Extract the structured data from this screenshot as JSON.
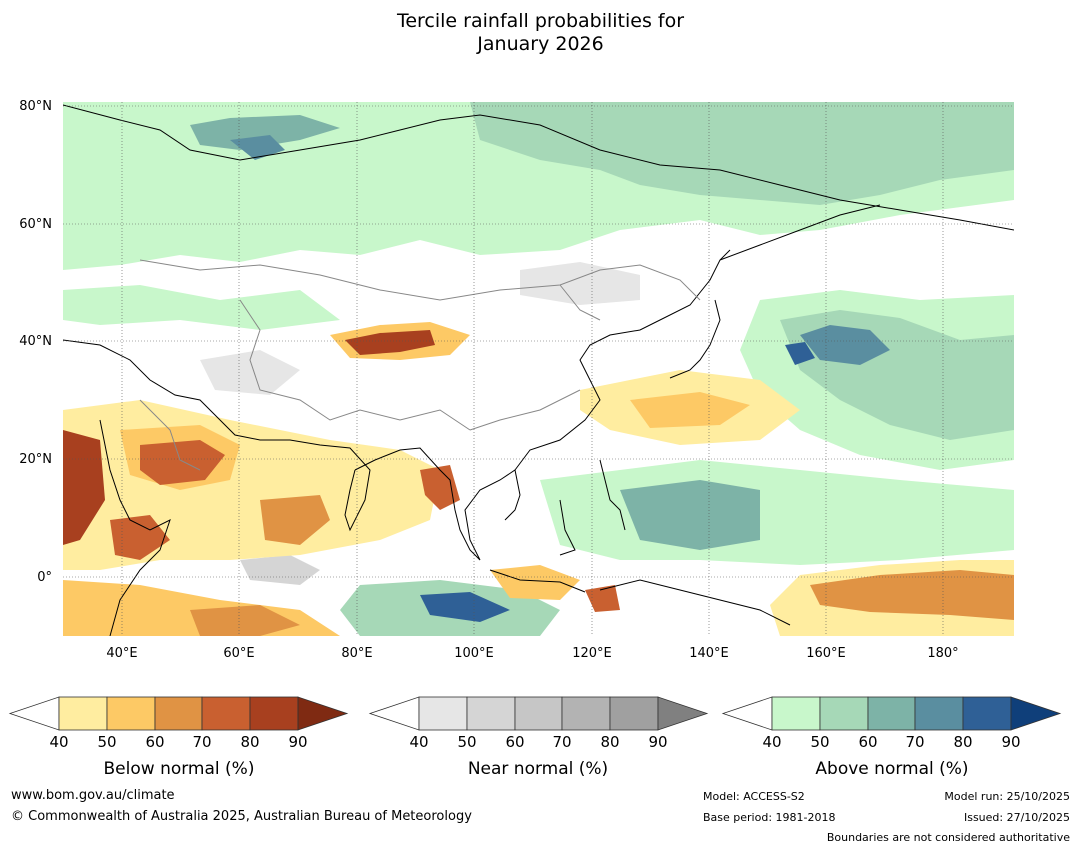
{
  "title": {
    "line1": "Tercile rainfall probabilities for",
    "line2": "January 2026"
  },
  "map": {
    "lat_labels": [
      "80°N",
      "60°N",
      "40°N",
      "20°N",
      "0°"
    ],
    "lon_labels": [
      "40°E",
      "60°E",
      "80°E",
      "100°E",
      "120°E",
      "140°E",
      "160°E",
      "180°"
    ]
  },
  "colorbars": [
    {
      "name": "below",
      "label": "Below normal (%)",
      "ticks": [
        "40",
        "50",
        "60",
        "70",
        "80",
        "90"
      ],
      "colors": [
        "#ffeda0",
        "#fdc965",
        "#e09344",
        "#c96030",
        "#a8401f",
        "#7f2a12"
      ]
    },
    {
      "name": "near",
      "label": "Near normal (%)",
      "ticks": [
        "40",
        "50",
        "60",
        "70",
        "80",
        "90"
      ],
      "colors": [
        "#e6e6e6",
        "#d5d5d5",
        "#c6c6c6",
        "#b3b3b3",
        "#a0a0a0",
        "#808080"
      ]
    },
    {
      "name": "above",
      "label": "Above normal (%)",
      "ticks": [
        "40",
        "50",
        "60",
        "70",
        "80",
        "90"
      ],
      "colors": [
        "#c8f7cb",
        "#a6d8b7",
        "#7db3a7",
        "#5a8ea0",
        "#2f6096",
        "#0f3f7a"
      ]
    }
  ],
  "footer": {
    "website": "www.bom.gov.au/climate",
    "copyright": "© Commonwealth of Australia 2025, Australian Bureau of Meteorology",
    "model": "Model: ACCESS-S2",
    "model_run": "Model run: 25/10/2025",
    "base_period": "Base period: 1981-2018",
    "issued": "Issued: 27/10/2025",
    "boundaries": "Boundaries are not considered authoritative"
  }
}
